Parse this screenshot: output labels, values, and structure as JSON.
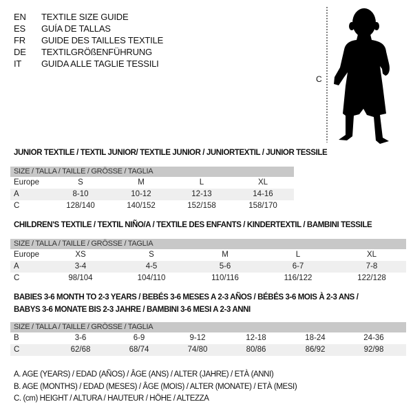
{
  "languages": [
    {
      "code": "EN",
      "title": "TEXTILE SIZE GUIDE"
    },
    {
      "code": "ES",
      "title": "GUÍA DE TALLAS"
    },
    {
      "code": "FR",
      "title": "GUIDE DES TAILLES TEXTILE"
    },
    {
      "code": "DE",
      "title": "TEXTILGRÖßENFÜHRUNG"
    },
    {
      "code": "IT",
      "title": "GUIDA ALLE TAGLIE TESSILI"
    }
  ],
  "figure": {
    "height_label": "C",
    "icon": "child-silhouette"
  },
  "junior": {
    "title": "JUNIOR TEXTILE / TEXTIL JUNIOR/ TEXTILE JUNIOR / JUNIORTEXTIL / JUNIOR TESSILE",
    "header": "SIZE / TALLA / TAILLE / GRÖSSE / TAGLIA",
    "rows": [
      {
        "label": "Europe",
        "values": [
          "S",
          "M",
          "L",
          "XL"
        ]
      },
      {
        "label": "A",
        "values": [
          "8-10",
          "10-12",
          "12-13",
          "14-16"
        ]
      },
      {
        "label": "C",
        "values": [
          "128/140",
          "140/152",
          "152/158",
          "158/170"
        ]
      }
    ]
  },
  "children": {
    "title": "CHILDREN'S TEXTILE / TEXTIL NIÑO/A / TEXTILE DES ENFANTS / KINDERTEXTIL / BAMBINI TESSILE",
    "header": "SIZE / TALLA / TAILLE / GRÖSSE / TAGLIA",
    "rows": [
      {
        "label": "Europe",
        "values": [
          "XS",
          "S",
          "M",
          "L",
          "XL"
        ]
      },
      {
        "label": "A",
        "values": [
          "3-4",
          "4-5",
          "5-6",
          "6-7",
          "7-8"
        ]
      },
      {
        "label": "C",
        "values": [
          "98/104",
          "104/110",
          "110/116",
          "116/122",
          "122/128"
        ]
      }
    ]
  },
  "babies": {
    "title_line1": "BABIES 3-6 MONTH TO 2-3 YEARS / BEBÉS 3-6 MESES A 2-3 AÑOS / BÉBÉS 3-6 MOIS À 2-3 ANS /",
    "title_line2": "BABYS 3-6 MONATE BIS 2-3 JAHRE / BAMBINI 3-6 MESI A 2-3 ANNI",
    "header": "SIZE / TALLA / TAILLE / GRÖSSE / TAGLIA",
    "rows": [
      {
        "label": "B",
        "values": [
          "3-6",
          "6-9",
          "9-12",
          "12-18",
          "18-24",
          "24-36"
        ]
      },
      {
        "label": "C",
        "values": [
          "62/68",
          "68/74",
          "74/80",
          "80/86",
          "86/92",
          "92/98"
        ]
      }
    ]
  },
  "legend": [
    "A. AGE (YEARS) / EDAD (AÑOS) / ÂGE (ANS) / ALTER (JAHRE) / ETÀ (ANNI)",
    "B. AGE (MONTHS) / EDAD (MESES) / ÂGE (MOIS) / ALTER (MONATE) / ETÀ (MESI)",
    "C. (cm) HEIGHT / ALTURA / HAUTEUR / HÖHE / ALTEZZA"
  ],
  "colors": {
    "header_bg": "#c8c8c8",
    "shade_bg": "#efefef"
  }
}
